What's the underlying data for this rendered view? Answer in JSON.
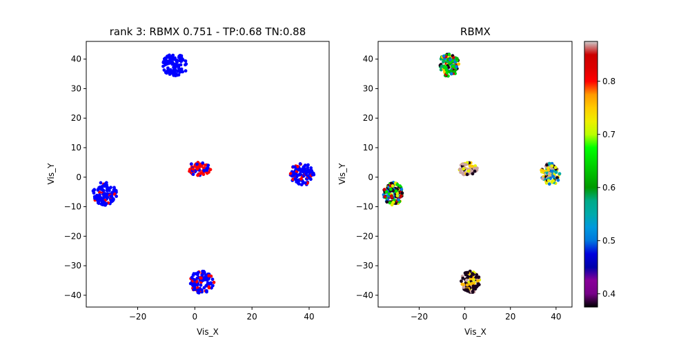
{
  "chart_data": [
    {
      "type": "scatter",
      "title": "rank 3: RBMX 0.751 - TP:0.68 TN:0.88",
      "xlabel": "Vis_X",
      "ylabel": "Vis_Y",
      "xlim": [
        -38,
        47
      ],
      "ylim": [
        -44,
        46
      ],
      "xticks": [
        -20,
        0,
        20,
        40
      ],
      "yticks": [
        -40,
        -30,
        -20,
        -10,
        0,
        10,
        20,
        30,
        40
      ],
      "grid": false,
      "legend": null,
      "point_colors": {
        "class_a": "#0000ff",
        "class_b": "#ff0000"
      },
      "clusters": [
        {
          "center": [
            -7,
            38
          ],
          "radii": [
            4.5,
            3.8
          ],
          "n_points": 110,
          "class_b_fraction": 0.0
        },
        {
          "center": [
            -31.5,
            -5.5
          ],
          "radii": [
            4.2,
            4.0
          ],
          "n_points": 120,
          "class_b_fraction": 0.12
        },
        {
          "center": [
            1.5,
            2.8
          ],
          "radii": [
            4.2,
            2.2
          ],
          "n_points": 60,
          "class_b_fraction": 0.65
        },
        {
          "center": [
            37.5,
            1.0
          ],
          "radii": [
            4.2,
            3.8
          ],
          "n_points": 110,
          "class_b_fraction": 0.22
        },
        {
          "center": [
            2.5,
            -35.5
          ],
          "radii": [
            4.2,
            3.8
          ],
          "n_points": 110,
          "class_b_fraction": 0.2
        }
      ]
    },
    {
      "type": "scatter",
      "title": "RBMX",
      "xlabel": "Vis_X",
      "ylabel": "Vis_Y",
      "xlim": [
        -38,
        47
      ],
      "ylim": [
        -44,
        46
      ],
      "xticks": [
        -20,
        0,
        20,
        40
      ],
      "yticks": [
        -40,
        -30,
        -20,
        -10,
        0,
        10,
        20,
        30,
        40
      ],
      "grid": false,
      "colorbar": {
        "colormap": "nipy_spectral",
        "min": 0.375,
        "max": 0.875,
        "ticks": [
          0.4,
          0.5,
          0.6,
          0.7,
          0.8
        ]
      },
      "clusters": [
        {
          "center": [
            -7,
            38
          ],
          "radii": [
            4.5,
            3.8
          ],
          "n_points": 110,
          "value_mix": [
            0.58,
            0.62,
            0.65,
            0.5,
            0.75,
            0.85,
            0.38
          ]
        },
        {
          "center": [
            -31.5,
            -5.5
          ],
          "radii": [
            4.2,
            4.0
          ],
          "n_points": 120,
          "value_mix": [
            0.38,
            0.38,
            0.38,
            0.72,
            0.65,
            0.5,
            0.85
          ]
        },
        {
          "center": [
            1.5,
            2.8
          ],
          "radii": [
            4.2,
            2.2
          ],
          "n_points": 60,
          "value_mix": [
            0.87,
            0.87,
            0.87,
            0.75,
            0.38,
            0.72
          ]
        },
        {
          "center": [
            37.5,
            1.0
          ],
          "radii": [
            4.2,
            3.8
          ],
          "n_points": 110,
          "value_mix": [
            0.72,
            0.72,
            0.75,
            0.87,
            0.38,
            0.5,
            0.55
          ]
        },
        {
          "center": [
            2.5,
            -35.5
          ],
          "radii": [
            4.2,
            3.8
          ],
          "n_points": 110,
          "value_mix": [
            0.38,
            0.38,
            0.38,
            0.38,
            0.72,
            0.76,
            0.87
          ]
        }
      ]
    }
  ]
}
